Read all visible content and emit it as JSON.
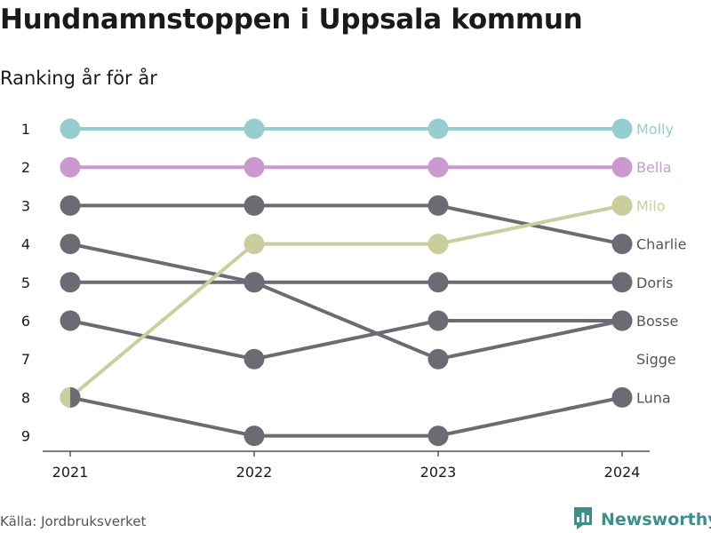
{
  "header": {
    "title": "Hundnamnstoppen i Uppsala kommun",
    "subtitle": "Ranking år för år"
  },
  "footer": {
    "source": "Källa: Jordbruksverket",
    "brand": "Newsworthy",
    "brand_icon": "bar-chart-logo-icon"
  },
  "colors": {
    "teal": "#96cdce",
    "purple": "#cb99cf",
    "olive": "#cacd9c",
    "gray": "#6b6b73",
    "label_gray": "#555555",
    "brand": "#3d8f8a"
  },
  "chart_data": {
    "type": "line",
    "x": [
      "2021",
      "2022",
      "2023",
      "2024"
    ],
    "y_ticks": [
      "1",
      "2",
      "3",
      "4",
      "5",
      "6",
      "7",
      "8",
      "9"
    ],
    "ylim": [
      1,
      9
    ],
    "y_reversed": true,
    "series": [
      {
        "name": "Molly",
        "values": [
          1,
          1,
          1,
          1
        ],
        "color": "#96cdce",
        "highlight": true
      },
      {
        "name": "Bella",
        "values": [
          2,
          2,
          2,
          2
        ],
        "color": "#cb99cf",
        "highlight": true
      },
      {
        "name": "Milo",
        "values": [
          8,
          4,
          4,
          3
        ],
        "color": "#cacd9c",
        "highlight": true
      },
      {
        "name": "Charlie",
        "values": [
          3,
          3,
          3,
          4
        ],
        "color": "#6b6b73",
        "highlight": false
      },
      {
        "name": "Doris",
        "values": [
          5,
          5,
          5,
          5
        ],
        "color": "#6b6b73",
        "highlight": false
      },
      {
        "name": "Bosse",
        "values": [
          6,
          7,
          6,
          6
        ],
        "color": "#6b6b73",
        "highlight": false
      },
      {
        "name": "Sigge",
        "values": [
          4,
          5,
          7,
          6
        ],
        "color": "#6b6b73",
        "highlight": false
      },
      {
        "name": "Luna",
        "values": [
          8,
          9,
          9,
          8
        ],
        "color": "#6b6b73",
        "highlight": false
      }
    ],
    "end_labels": [
      {
        "text": "Molly",
        "rank": 1,
        "color": "#96cdce"
      },
      {
        "text": "Bella",
        "rank": 2,
        "color": "#cb99cf"
      },
      {
        "text": "Milo",
        "rank": 3,
        "color": "#cacd9c"
      },
      {
        "text": "Charlie",
        "rank": 4,
        "color": "#555555"
      },
      {
        "text": "Doris",
        "rank": 5,
        "color": "#555555"
      },
      {
        "text": "Bosse",
        "rank": 6,
        "color": "#555555"
      },
      {
        "text": "Sigge",
        "rank": 7,
        "color": "#555555"
      },
      {
        "text": "Luna",
        "rank": 8,
        "color": "#555555"
      }
    ],
    "split_markers": [
      {
        "year_index": 0,
        "rank": 8,
        "left_color": "#cacd9c",
        "right_color": "#6b6b73"
      }
    ],
    "grid": false
  }
}
